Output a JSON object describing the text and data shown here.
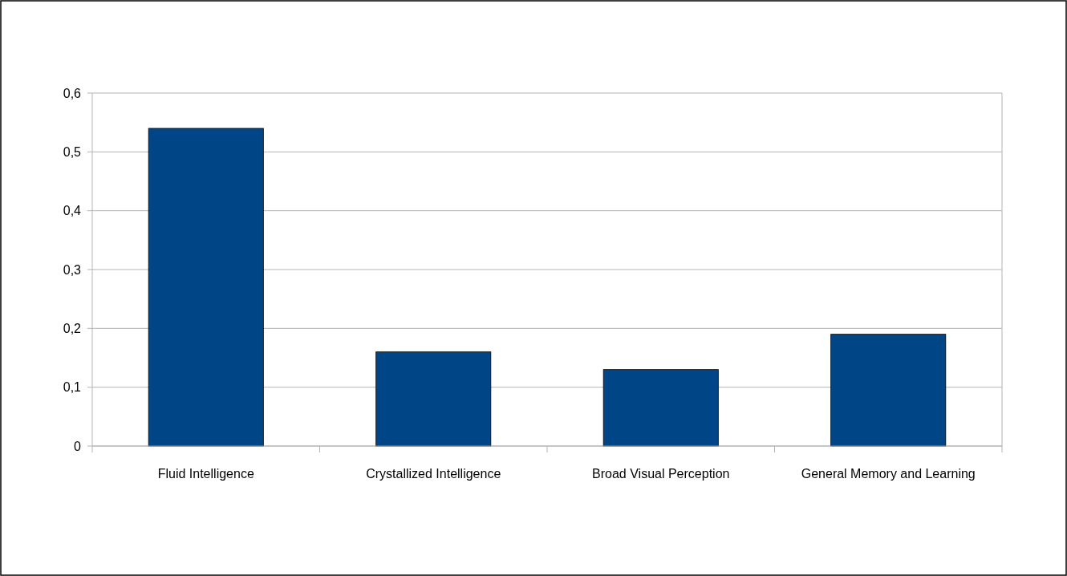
{
  "chart_data": {
    "type": "bar",
    "categories": [
      "Fluid Intelligence",
      "Crystallized Intelligence",
      "Broad Visual Perception",
      "General Memory and Learning"
    ],
    "values": [
      0.54,
      0.16,
      0.13,
      0.19
    ],
    "color": "#004586",
    "ylim": [
      0,
      0.6
    ],
    "yticks": [
      {
        "value": 0,
        "label": "0"
      },
      {
        "value": 0.1,
        "label": "0,1"
      },
      {
        "value": 0.2,
        "label": "0,2"
      },
      {
        "value": 0.3,
        "label": "0,3"
      },
      {
        "value": 0.4,
        "label": "0,4"
      },
      {
        "value": 0.5,
        "label": "0,5"
      },
      {
        "value": 0.6,
        "label": "0,6"
      }
    ],
    "grid": "y"
  }
}
